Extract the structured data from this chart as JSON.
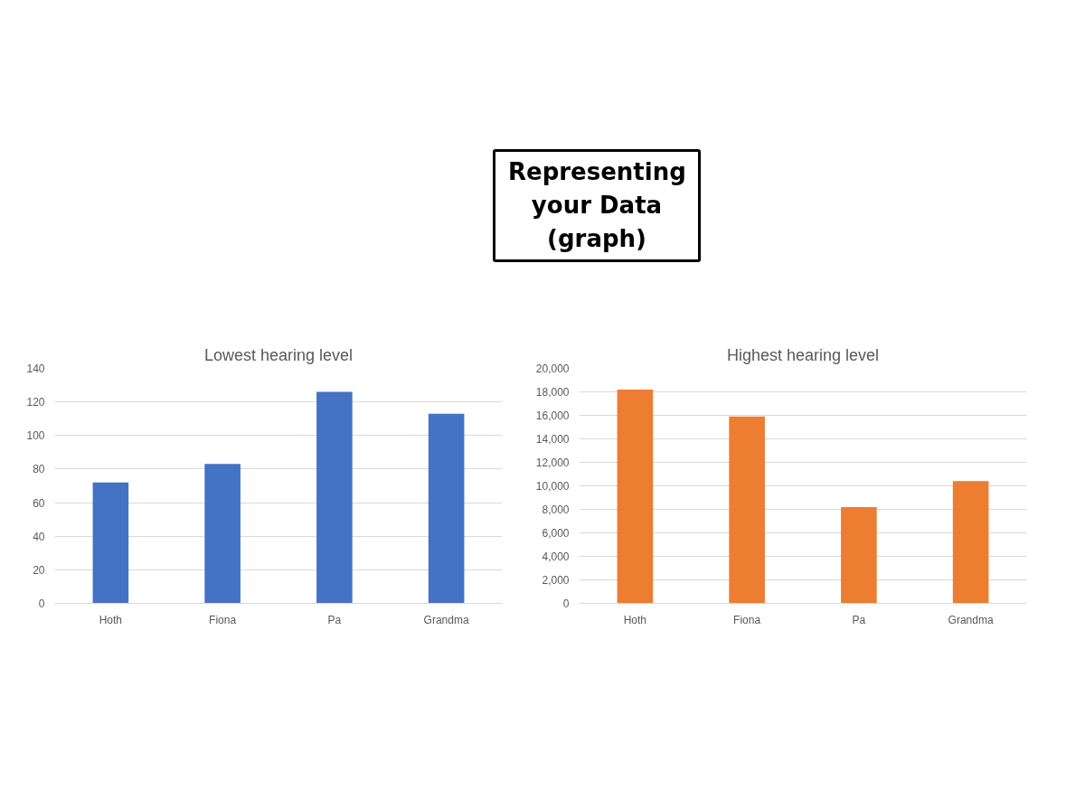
{
  "chart_data": [
    {
      "type": "bar",
      "title": "Lowest hearing level",
      "annotations": [
        "Representing your Data (graph)"
      ],
      "categories": [
        "Hoth",
        "Fiona",
        "Pa",
        "Grandma"
      ],
      "values": [
        72,
        83,
        126,
        113
      ],
      "color": "#4472c4",
      "ylim": [
        0,
        140
      ],
      "yticks": [
        0,
        20,
        40,
        60,
        80,
        100,
        120,
        140
      ],
      "grid": "y"
    },
    {
      "type": "bar",
      "title": "Highest hearing level",
      "categories": [
        "Hoth",
        "Fiona",
        "Pa",
        "Grandma"
      ],
      "values": [
        18200,
        15900,
        8200,
        10400
      ],
      "color": "#ed7d31",
      "ylim": [
        0,
        20000
      ],
      "yticks": [
        {
          "value": 0,
          "label": "0"
        },
        {
          "value": 2000,
          "label": "2,000"
        },
        {
          "value": 4000,
          "label": "4,000"
        },
        {
          "value": 6000,
          "label": "6,000"
        },
        {
          "value": 8000,
          "label": "8,000"
        },
        {
          "value": 10000,
          "label": "10,000"
        },
        {
          "value": 12000,
          "label": "12,000"
        },
        {
          "value": 14000,
          "label": "14,000"
        },
        {
          "value": 16000,
          "label": "16,000"
        },
        {
          "value": 18000,
          "label": "18,000"
        },
        {
          "value": 20000,
          "label": "20,000"
        }
      ],
      "grid": "y"
    }
  ]
}
